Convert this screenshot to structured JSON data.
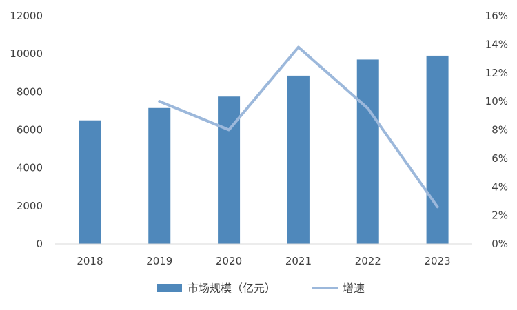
{
  "chart_data": {
    "type": "bar",
    "categories": [
      "2018",
      "2019",
      "2020",
      "2021",
      "2022",
      "2023"
    ],
    "series": [
      {
        "name": "市场规模（亿元）",
        "type": "bar",
        "axis": "left",
        "values": [
          6500,
          7150,
          7750,
          8850,
          9700,
          9900
        ]
      },
      {
        "name": "增速",
        "type": "line",
        "axis": "right",
        "values": [
          null,
          0.1,
          0.08,
          0.138,
          0.095,
          0.026
        ]
      }
    ],
    "y_left": {
      "min": 0,
      "max": 12000,
      "step": 2000,
      "tick_labels": [
        "0",
        "2000",
        "4000",
        "6000",
        "8000",
        "10000",
        "12000"
      ]
    },
    "y_right": {
      "min": 0,
      "max": 0.16,
      "step": 0.02,
      "tick_labels": [
        "0%",
        "2%",
        "4%",
        "6%",
        "8%",
        "10%",
        "12%",
        "14%",
        "16%"
      ]
    },
    "grid": false,
    "legend_position": "bottom",
    "colors": {
      "bar": "#4f88bb",
      "line": "#9cb8db",
      "axis": "#d9d9d9",
      "text": "#404040"
    }
  }
}
